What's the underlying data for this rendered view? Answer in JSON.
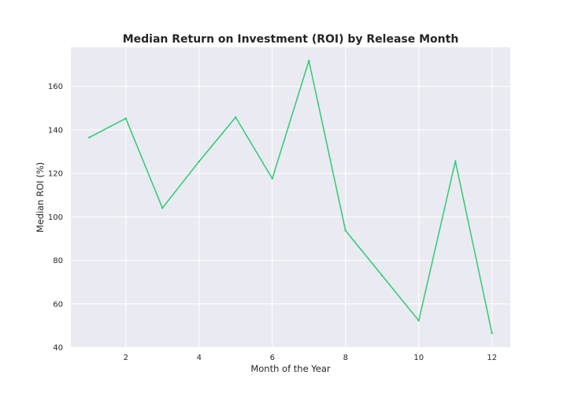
{
  "chart_data": {
    "type": "line",
    "title": "Median Return on Investment (ROI) by Release Month",
    "xlabel": "Month of the Year",
    "ylabel": "Median ROI (%)",
    "xlim": [
      0.5,
      12.5
    ],
    "ylim": [
      40,
      178
    ],
    "xticks": [
      2,
      4,
      6,
      8,
      10,
      12
    ],
    "yticks": [
      40,
      60,
      80,
      100,
      120,
      140,
      160
    ],
    "grid": true,
    "legend": "none",
    "series": [
      {
        "color": "#2ecc71",
        "x": [
          1,
          2,
          3,
          4,
          5,
          6,
          7,
          8,
          9,
          10,
          11,
          12
        ],
        "values": [
          136.5,
          145.3,
          104.1,
          125.5,
          145.8,
          117.6,
          171.8,
          93.7,
          73.0,
          52.3,
          125.6,
          46.5
        ]
      }
    ]
  },
  "colors": {
    "plot_background": "#eaeaf2",
    "grid": "#ffffff",
    "text": "#262626"
  }
}
